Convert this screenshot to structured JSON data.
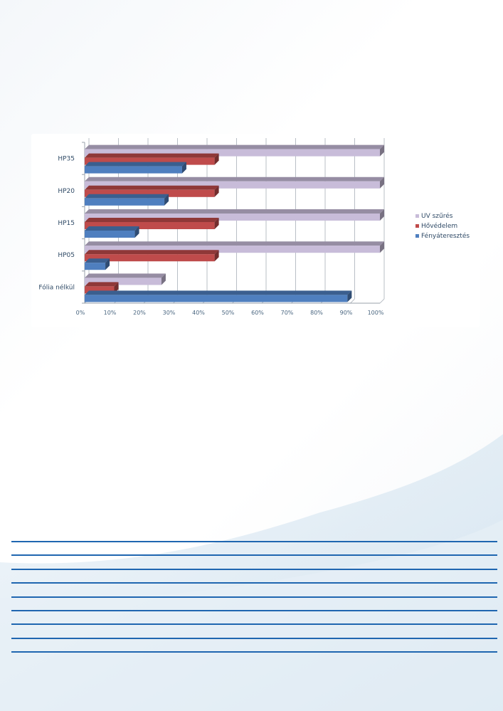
{
  "chart_data": {
    "type": "bar",
    "orientation": "horizontal",
    "style": "3d-clustered",
    "categories": [
      "HP35",
      "HP20",
      "HP15",
      "HP05",
      "Fólia nélkül"
    ],
    "series": [
      {
        "name": "UV szűrés",
        "color": "#c8bcd9",
        "values": [
          100,
          100,
          100,
          100,
          26
        ]
      },
      {
        "name": "Hővédelem",
        "color": "#bf4b4b",
        "values": [
          44,
          44,
          44,
          44,
          10
        ]
      },
      {
        "name": "Fényáteresztés",
        "color": "#4f7fbf",
        "values": [
          33,
          27,
          17,
          7,
          89
        ]
      }
    ],
    "xlim": [
      0,
      100
    ],
    "x_ticks": [
      "0%",
      "10%",
      "20%",
      "30%",
      "40%",
      "50%",
      "60%",
      "70%",
      "80%",
      "90%",
      "100%"
    ],
    "grid": true,
    "legend_position": "right"
  }
}
